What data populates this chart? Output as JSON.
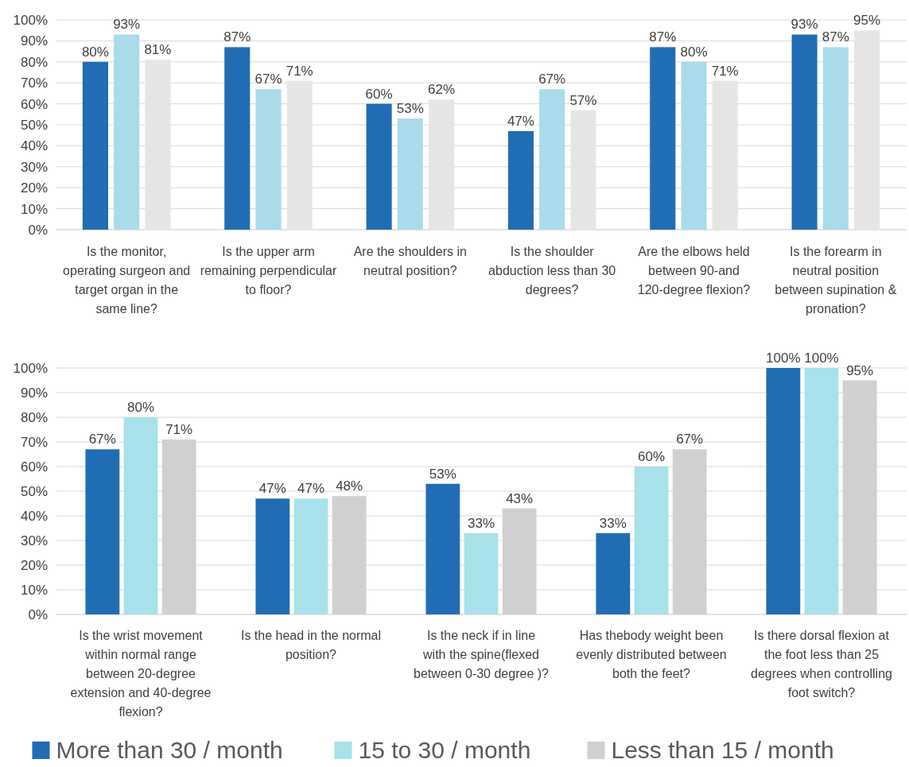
{
  "chart_data": [
    {
      "type": "bar",
      "categories": [
        "Is the monitor, operating surgeon and target organ in the same line?",
        "Is the upper arm remaining perpendicular to floor?",
        "Are the shoulders in neutral position?",
        "Is the shoulder abduction less than 30 degrees?",
        "Are the elbows held between 90-and 120-degree flexion?",
        "Is the forearm in neutral position between supination & pronation?"
      ],
      "series": [
        {
          "color": "#216db3",
          "values": [
            80,
            87,
            60,
            47,
            87,
            93
          ]
        },
        {
          "color": "#a9dbeb",
          "values": [
            93,
            67,
            53,
            67,
            80,
            87
          ]
        },
        {
          "color": "#e6e6e6",
          "values": [
            81,
            71,
            62,
            57,
            71,
            95
          ]
        }
      ],
      "ylim": [
        0,
        100
      ],
      "yticks": [
        {
          "value": 0,
          "label": "0%"
        },
        {
          "value": 10,
          "label": "10%"
        },
        {
          "value": 20,
          "label": "20%"
        },
        {
          "value": 30,
          "label": "30%"
        },
        {
          "value": 40,
          "label": "40%"
        },
        {
          "value": 50,
          "label": "50%"
        },
        {
          "value": 60,
          "label": "60%"
        },
        {
          "value": 70,
          "label": "70%"
        },
        {
          "value": 80,
          "label": "80%"
        },
        {
          "value": 90,
          "label": "90%"
        },
        {
          "value": 100,
          "label": "100%"
        }
      ],
      "value_labels": [
        [
          "80%",
          "87%",
          "60%",
          "47%",
          "87%",
          "93%"
        ],
        [
          "93%",
          "67%",
          "53%",
          "67%",
          "80%",
          "87%"
        ],
        [
          "81%",
          "71%",
          "62%",
          "57%",
          "71%",
          "95%"
        ]
      ],
      "grid": "y",
      "legend": false
    },
    {
      "type": "bar",
      "categories": [
        "Is the wrist  movement within normal range between 20-degree extension and 40-degree flexion?",
        "Is the head in the normal position?",
        "Is the neck if in line with the spine(flexed between 0-30 degree )?",
        "Has thebody weight been evenly distributed between both the feet?",
        "Is there dorsal flexion at the foot less than 25 degrees when controlling foot switch?"
      ],
      "series": [
        {
          "name": "More than 30 / month",
          "color": "#216db3",
          "values": [
            67,
            47,
            53,
            33,
            100
          ]
        },
        {
          "name": "15 to 30 / month",
          "color": "#a8e1e9",
          "values": [
            80,
            47,
            33,
            60,
            100
          ]
        },
        {
          "name": "Less than 15 / month",
          "color": "#d0d0d0",
          "values": [
            71,
            48,
            43,
            67,
            95
          ]
        }
      ],
      "ylim": [
        0,
        100
      ],
      "yticks": [
        {
          "value": 0,
          "label": "0%"
        },
        {
          "value": 10,
          "label": "10%"
        },
        {
          "value": 20,
          "label": "20%"
        },
        {
          "value": 30,
          "label": "30%"
        },
        {
          "value": 40,
          "label": "40%"
        },
        {
          "value": 50,
          "label": "50%"
        },
        {
          "value": 60,
          "label": "60%"
        },
        {
          "value": 70,
          "label": "70%"
        },
        {
          "value": 80,
          "label": "80%"
        },
        {
          "value": 90,
          "label": "90%"
        },
        {
          "value": 100,
          "label": "100%"
        }
      ],
      "value_labels": [
        [
          "67%",
          "47%",
          "53%",
          "33%",
          "100%"
        ],
        [
          "80%",
          "47%",
          "33%",
          "60%",
          "100%"
        ],
        [
          "71%",
          "48%",
          "43%",
          "67%",
          "95%"
        ]
      ],
      "grid": "y",
      "legend": "bottom"
    }
  ]
}
